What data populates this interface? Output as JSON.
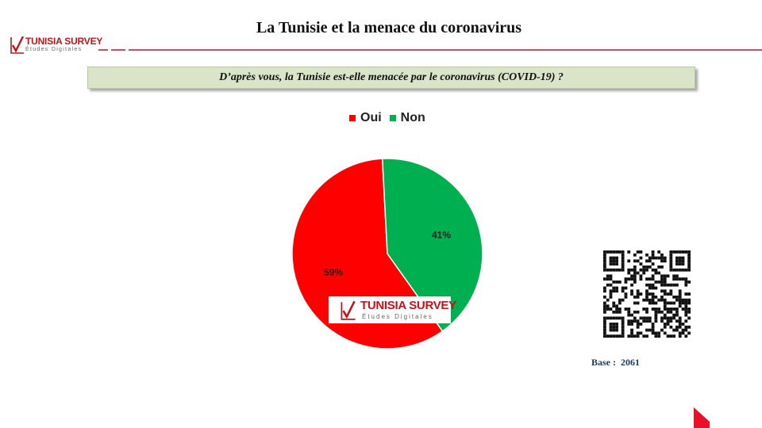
{
  "slide": {
    "title": "La Tunisie et la menace du coronavirus",
    "question": "D’après vous, la Tunisie est-elle menacée par le coronavirus (COVID-19) ?",
    "base_label": "Base :  2061"
  },
  "brand": {
    "name": "TUNISIA SURVEY",
    "tagline": "Études Digitales",
    "accent_color": "#c0141b"
  },
  "chart_data": {
    "type": "pie",
    "title": "",
    "legend_position": "top",
    "slices": [
      {
        "name": "Oui",
        "value": 59,
        "label": "59%",
        "color": "#ff0000"
      },
      {
        "name": "Non",
        "value": 41,
        "label": "41%",
        "color": "#00b050"
      }
    ]
  },
  "icons": {
    "qr": "qr-code-icon",
    "logo_check": "checkmark-icon",
    "corner": "corner-triangle-icon"
  }
}
